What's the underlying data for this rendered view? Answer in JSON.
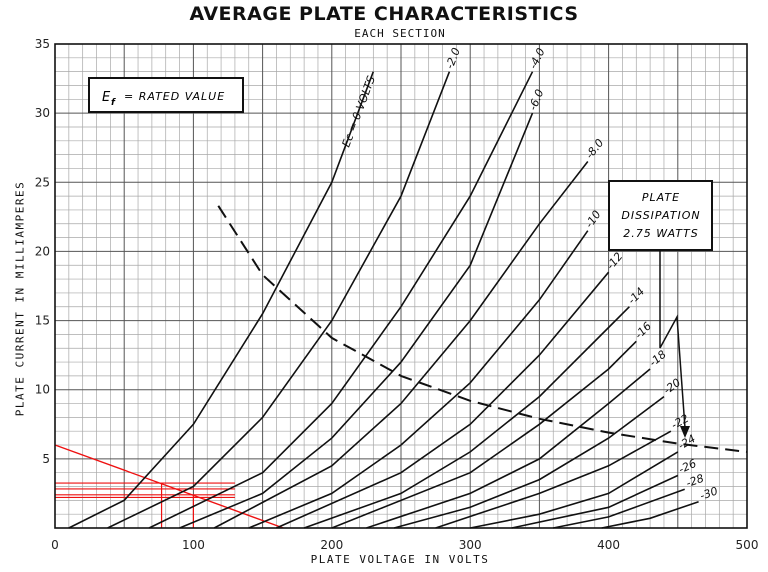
{
  "header": {
    "title": "AVERAGE PLATE CHARACTERISTICS",
    "subtitle": "EACH SECTION"
  },
  "annotations": {
    "ef_box": "= RATED VALUE",
    "ef_symbol": "E",
    "ef_subscript": "f",
    "dissipation_box": [
      "PLATE",
      "DISSIPATION",
      "2.75 WATTS"
    ],
    "first_curve_label": "Ec = 0 VOLTS"
  },
  "chart_data": {
    "type": "line",
    "title": "AVERAGE PLATE CHARACTERISTICS",
    "subtitle": "EACH SECTION",
    "xlabel": "PLATE VOLTAGE IN VOLTS",
    "ylabel": "PLATE CURRENT IN MILLIAMPERES",
    "xlim": [
      0,
      500
    ],
    "ylim": [
      0,
      35
    ],
    "xticks": [
      "0",
      "100",
      "200",
      "300",
      "400",
      "500"
    ],
    "yticks": [
      "5",
      "10",
      "15",
      "20",
      "25",
      "30",
      "35"
    ],
    "grid": true,
    "series": [
      {
        "name": "Ec = 0 VOLTS",
        "label": "Ec = 0 VOLTS",
        "x": [
          10,
          50,
          100,
          150,
          200,
          230
        ],
        "y": [
          0,
          2,
          7.5,
          15.5,
          25,
          33
        ]
      },
      {
        "name": "-2.0",
        "label": "-2.0",
        "x": [
          38,
          100,
          150,
          200,
          250,
          285
        ],
        "y": [
          0,
          3,
          8,
          15,
          24,
          33
        ]
      },
      {
        "name": "-4.0",
        "label": "-4.0",
        "x": [
          68,
          150,
          200,
          250,
          300,
          345
        ],
        "y": [
          0,
          4,
          9,
          16,
          24,
          33
        ]
      },
      {
        "name": "-6.0",
        "label": "-6.0",
        "x": [
          90,
          150,
          200,
          250,
          300,
          345
        ],
        "y": [
          0,
          2.5,
          6.5,
          12,
          19,
          30
        ]
      },
      {
        "name": "-8.0",
        "label": "-8.0",
        "x": [
          115,
          200,
          250,
          300,
          350,
          385
        ],
        "y": [
          0,
          4.5,
          9,
          15,
          22,
          26.5
        ]
      },
      {
        "name": "-10",
        "label": "-10",
        "x": [
          140,
          200,
          250,
          300,
          350,
          385
        ],
        "y": [
          0,
          2.5,
          6,
          10.5,
          16.5,
          21.5
        ]
      },
      {
        "name": "-12",
        "label": "-12",
        "x": [
          160,
          250,
          300,
          350,
          400
        ],
        "y": [
          0,
          4,
          7.5,
          12.5,
          18.5
        ]
      },
      {
        "name": "-14",
        "label": "-14",
        "x": [
          180,
          250,
          300,
          350,
          400,
          415
        ],
        "y": [
          0,
          2.5,
          5.5,
          9.5,
          14.5,
          16
        ]
      },
      {
        "name": "-16",
        "label": "-16",
        "x": [
          200,
          300,
          350,
          400,
          420
        ],
        "y": [
          0,
          4,
          7.5,
          11.5,
          13.5
        ]
      },
      {
        "name": "-18",
        "label": "-18",
        "x": [
          225,
          300,
          350,
          400,
          430
        ],
        "y": [
          0,
          2.5,
          5,
          9,
          11.5
        ]
      },
      {
        "name": "-20",
        "label": "-20",
        "x": [
          245,
          300,
          350,
          400,
          440
        ],
        "y": [
          0,
          1.5,
          3.5,
          6.5,
          9.5
        ]
      },
      {
        "name": "-22",
        "label": "-22",
        "x": [
          275,
          350,
          400,
          445
        ],
        "y": [
          0,
          2.5,
          4.5,
          7
        ]
      },
      {
        "name": "-24",
        "label": "-24",
        "x": [
          300,
          350,
          400,
          450
        ],
        "y": [
          0,
          1,
          2.5,
          5.5
        ]
      },
      {
        "name": "-26",
        "label": "-26",
        "x": [
          330,
          400,
          450
        ],
        "y": [
          0,
          1.5,
          3.8
        ]
      },
      {
        "name": "-28",
        "label": "-28",
        "x": [
          360,
          400,
          455
        ],
        "y": [
          0,
          0.8,
          2.8
        ]
      },
      {
        "name": "-30",
        "label": "-30",
        "x": [
          395,
          430,
          465
        ],
        "y": [
          0,
          0.7,
          1.9
        ]
      }
    ],
    "dissipation_curve": {
      "label": "PLATE DISSIPATION 2.75 WATTS",
      "x": [
        118,
        150,
        200,
        250,
        300,
        350,
        400,
        450,
        500
      ],
      "y": [
        23.3,
        18.3,
        13.75,
        11,
        9.2,
        7.9,
        6.9,
        6.1,
        5.5
      ]
    },
    "load_line": {
      "x": [
        0,
        165
      ],
      "y": [
        6,
        0
      ]
    },
    "operating_points": {
      "x": [
        77,
        100
      ],
      "y": [
        3.25,
        2.4
      ]
    }
  }
}
